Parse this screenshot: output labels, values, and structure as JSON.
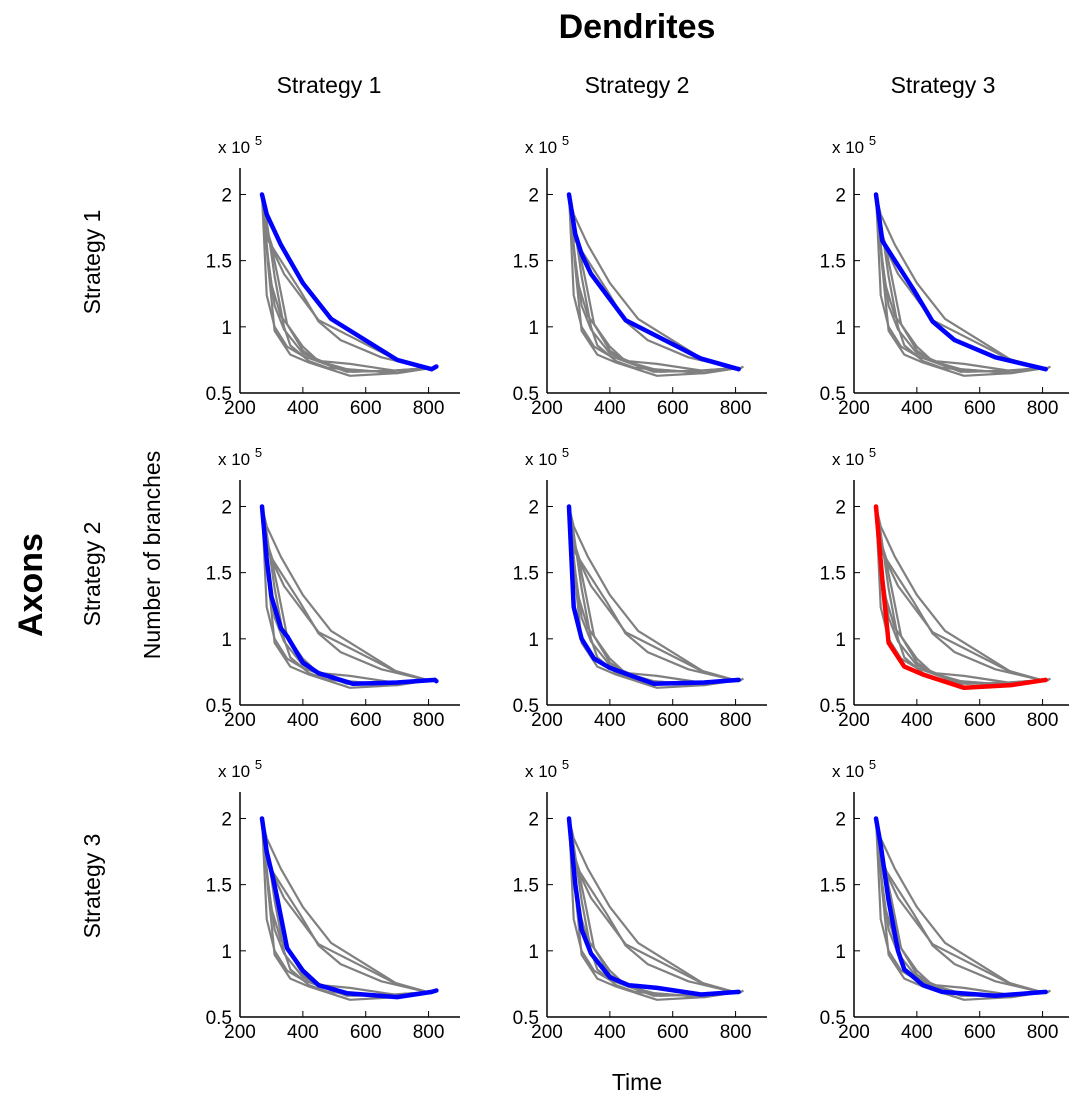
{
  "titles": {
    "columns_group": "Dendrites",
    "rows_group": "Axons",
    "xlabel": "Time",
    "ylabel": "Number of branches"
  },
  "column_labels": [
    "Strategy 1",
    "Strategy 2",
    "Strategy 3"
  ],
  "row_labels": [
    "Strategy 1",
    "Strategy 2",
    "Strategy 3"
  ],
  "y_exponent": {
    "prefix": "x 10",
    "power": "5"
  },
  "colors": {
    "background_series": "#808080",
    "highlight": "#0000ff",
    "highlight_diagonal": "#ff0000"
  },
  "chart_data": {
    "type": "line",
    "layout": "3x3 grid of subplots (rows = axon strategy, columns = dendrite strategy)",
    "xlim": [
      200,
      900
    ],
    "ylim": [
      0.5,
      2.2
    ],
    "y_scale_note": "values in units of 10^5",
    "xticks": [
      200,
      400,
      600,
      800
    ],
    "yticks": [
      0.5,
      1,
      1.5,
      2
    ],
    "xtick_labels": [
      "200",
      "400",
      "600",
      "800"
    ],
    "ytick_labels": [
      "0.5",
      "1",
      "1.5",
      "2"
    ],
    "series": [
      {
        "row": 1,
        "col": 1,
        "x": [
          270,
          285,
          330,
          400,
          490,
          700,
          810,
          825
        ],
        "y": [
          2.0,
          1.85,
          1.62,
          1.33,
          1.06,
          0.75,
          0.68,
          0.7
        ]
      },
      {
        "row": 1,
        "col": 2,
        "x": [
          270,
          290,
          310,
          340,
          450,
          690,
          810
        ],
        "y": [
          2.0,
          1.7,
          1.55,
          1.4,
          1.05,
          0.76,
          0.68
        ]
      },
      {
        "row": 1,
        "col": 3,
        "x": [
          270,
          290,
          330,
          390,
          450,
          520,
          650,
          810
        ],
        "y": [
          2.0,
          1.65,
          1.5,
          1.28,
          1.04,
          0.9,
          0.77,
          0.68
        ]
      },
      {
        "row": 2,
        "col": 1,
        "x": [
          270,
          285,
          300,
          330,
          350,
          400,
          450,
          560,
          700,
          820,
          825
        ],
        "y": [
          2.0,
          1.6,
          1.32,
          1.08,
          1.02,
          0.82,
          0.74,
          0.66,
          0.67,
          0.69,
          0.68
        ]
      },
      {
        "row": 2,
        "col": 2,
        "x": [
          270,
          285,
          310,
          350,
          400,
          540,
          700,
          810
        ],
        "y": [
          2.0,
          1.24,
          1.0,
          0.85,
          0.78,
          0.66,
          0.67,
          0.69
        ]
      },
      {
        "row": 2,
        "col": 3,
        "x": [
          270,
          290,
          310,
          360,
          420,
          550,
          700,
          810
        ],
        "y": [
          2.0,
          1.45,
          0.97,
          0.79,
          0.73,
          0.63,
          0.65,
          0.69
        ]
      },
      {
        "row": 3,
        "col": 1,
        "x": [
          270,
          285,
          305,
          320,
          350,
          400,
          450,
          540,
          700,
          810,
          825
        ],
        "y": [
          2.0,
          1.75,
          1.55,
          1.38,
          1.02,
          0.85,
          0.74,
          0.68,
          0.65,
          0.69,
          0.7
        ]
      },
      {
        "row": 3,
        "col": 2,
        "x": [
          270,
          290,
          310,
          340,
          400,
          460,
          550,
          690,
          810
        ],
        "y": [
          2.0,
          1.5,
          1.16,
          0.98,
          0.8,
          0.74,
          0.72,
          0.67,
          0.69
        ]
      },
      {
        "row": 3,
        "col": 3,
        "x": [
          270,
          285,
          310,
          340,
          360,
          420,
          480,
          650,
          810
        ],
        "y": [
          2.0,
          1.8,
          1.38,
          1.0,
          0.86,
          0.74,
          0.69,
          0.66,
          0.69
        ]
      }
    ],
    "background_series": [
      {
        "x": [
          270,
          285,
          330,
          400,
          490,
          700,
          810,
          825
        ],
        "y": [
          2.0,
          1.85,
          1.62,
          1.33,
          1.06,
          0.75,
          0.68,
          0.7
        ]
      },
      {
        "x": [
          270,
          290,
          310,
          340,
          450,
          690,
          810
        ],
        "y": [
          2.0,
          1.7,
          1.55,
          1.4,
          1.05,
          0.76,
          0.68
        ]
      },
      {
        "x": [
          270,
          290,
          330,
          390,
          450,
          520,
          650,
          810
        ],
        "y": [
          2.0,
          1.65,
          1.5,
          1.28,
          1.04,
          0.9,
          0.77,
          0.68
        ]
      },
      {
        "x": [
          270,
          285,
          300,
          330,
          350,
          400,
          450,
          560,
          700,
          820
        ],
        "y": [
          2.0,
          1.6,
          1.32,
          1.08,
          1.02,
          0.82,
          0.74,
          0.66,
          0.67,
          0.69
        ]
      },
      {
        "x": [
          270,
          285,
          310,
          350,
          400,
          540,
          700,
          810
        ],
        "y": [
          2.0,
          1.24,
          1.0,
          0.85,
          0.78,
          0.66,
          0.67,
          0.69
        ]
      },
      {
        "x": [
          270,
          290,
          310,
          360,
          420,
          550,
          700,
          810
        ],
        "y": [
          2.0,
          1.45,
          0.97,
          0.79,
          0.73,
          0.63,
          0.65,
          0.69
        ]
      },
      {
        "x": [
          270,
          285,
          305,
          320,
          350,
          400,
          450,
          540,
          700,
          810
        ],
        "y": [
          2.0,
          1.75,
          1.55,
          1.38,
          1.02,
          0.85,
          0.74,
          0.68,
          0.65,
          0.69
        ]
      },
      {
        "x": [
          270,
          290,
          310,
          340,
          400,
          460,
          550,
          690,
          810
        ],
        "y": [
          2.0,
          1.5,
          1.16,
          0.98,
          0.8,
          0.74,
          0.72,
          0.67,
          0.69
        ]
      },
      {
        "x": [
          270,
          285,
          310,
          340,
          360,
          420,
          480,
          650,
          810
        ],
        "y": [
          2.0,
          1.8,
          1.38,
          1.0,
          0.86,
          0.74,
          0.69,
          0.66,
          0.69
        ]
      }
    ],
    "highlight_color_per_panel": [
      [
        "#0000ff",
        "#0000ff",
        "#0000ff"
      ],
      [
        "#0000ff",
        "#0000ff",
        "#ff0000"
      ],
      [
        "#0000ff",
        "#0000ff",
        "#0000ff"
      ]
    ],
    "grid": false,
    "legend": "none"
  }
}
